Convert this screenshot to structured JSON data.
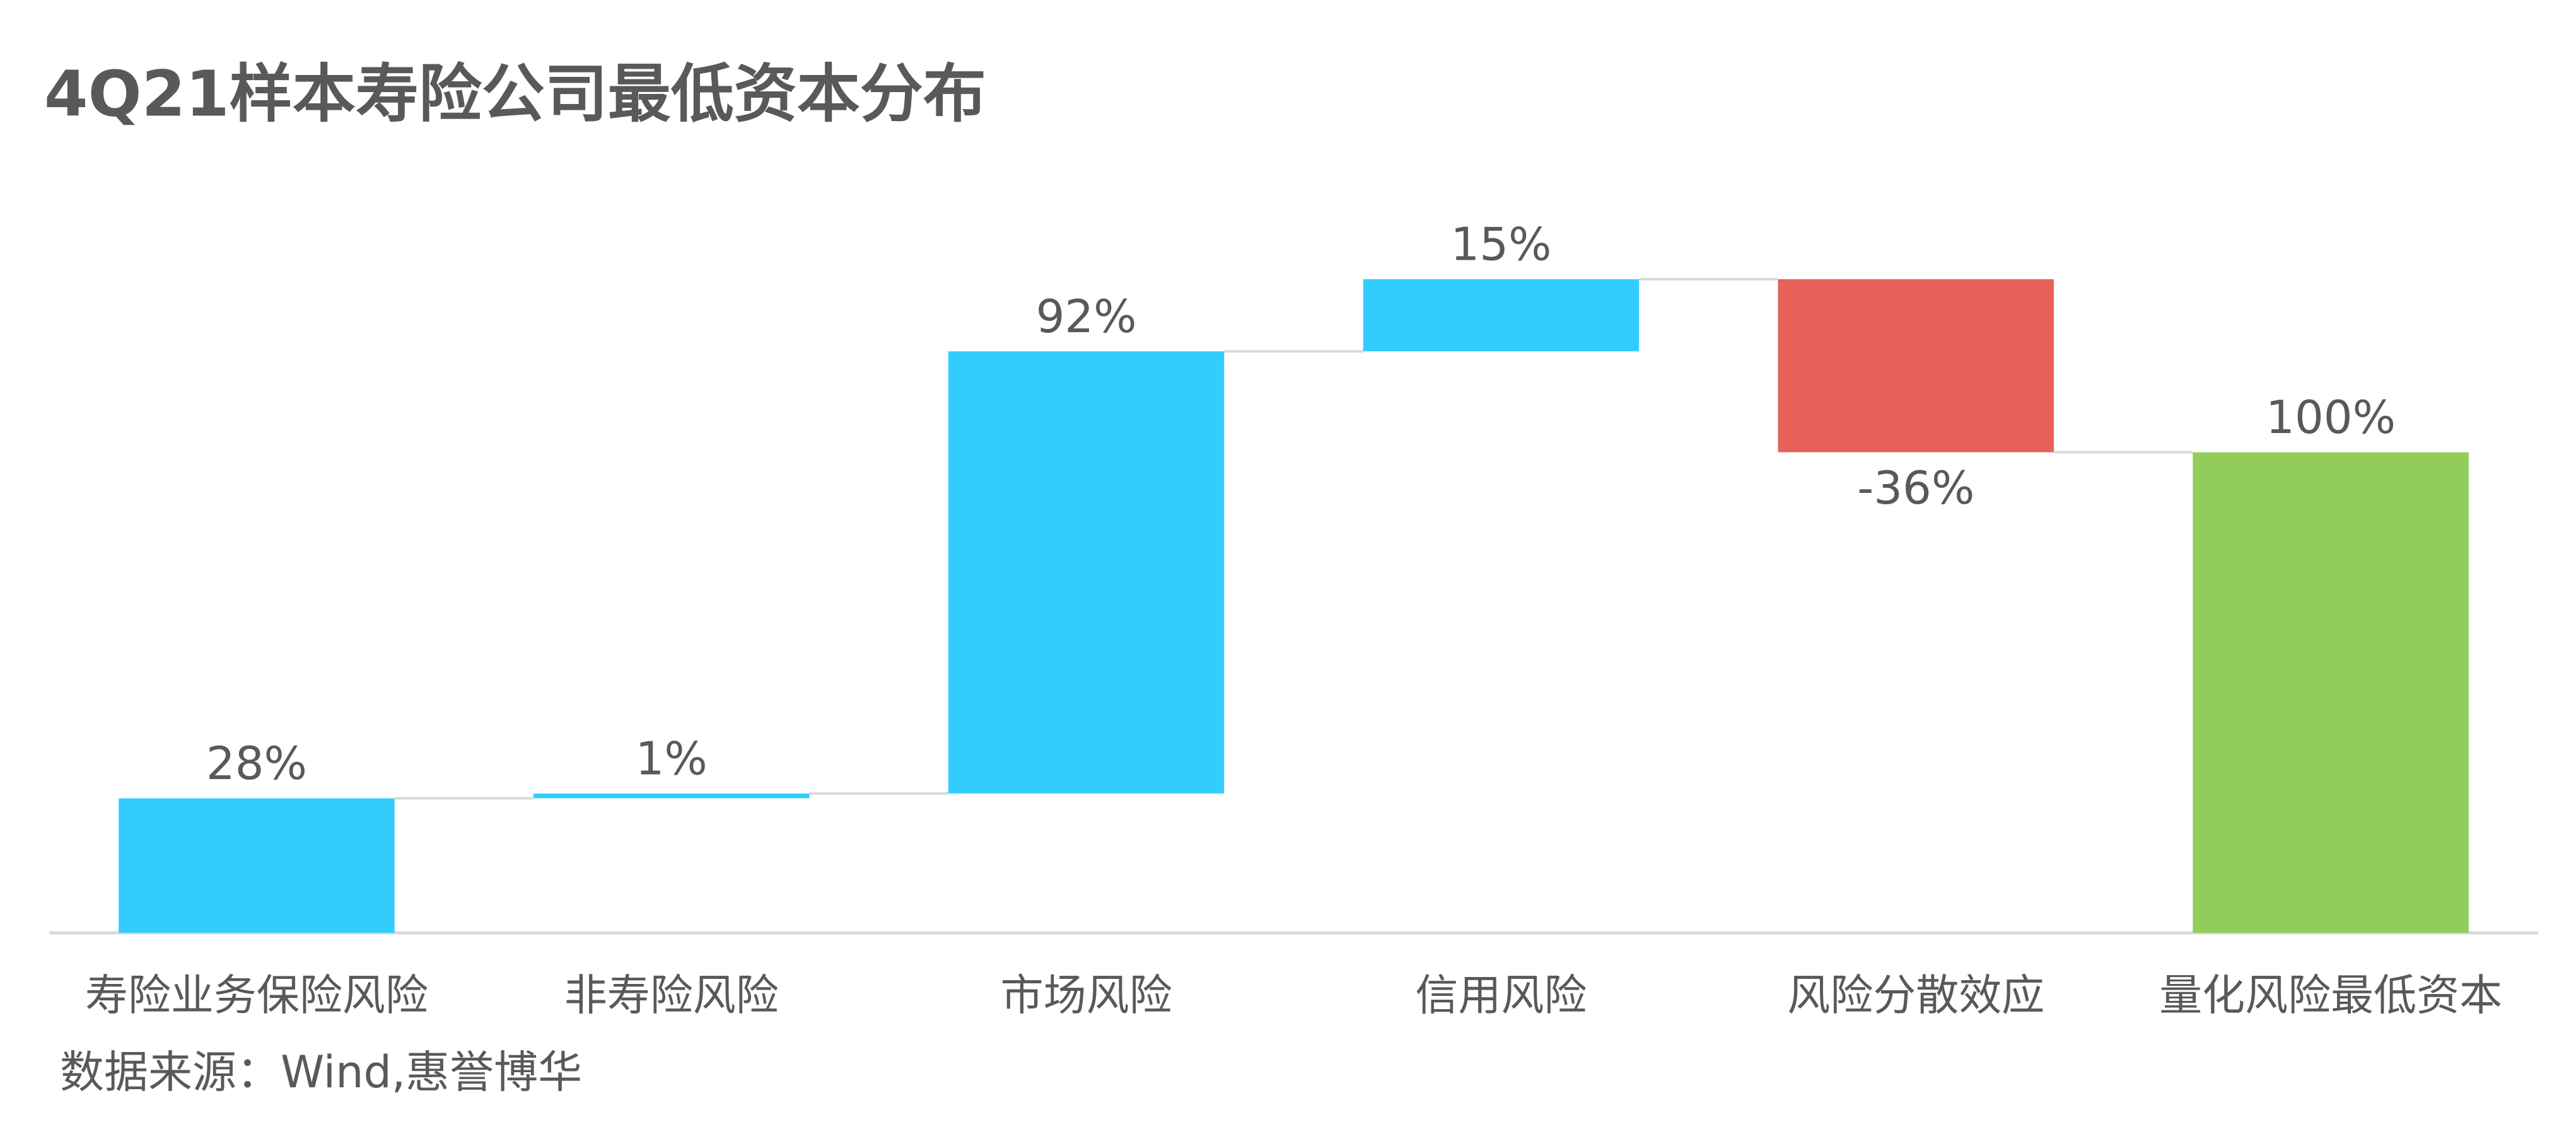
{
  "chart_data": {
    "type": "waterfall",
    "title": "4Q21样本寿险公司最低资本分布",
    "categories": [
      "寿险业务保险风险",
      "非寿险风险",
      "市场风险",
      "信用风险",
      "风险分散效应",
      "量化风险最低资本"
    ],
    "values": [
      28,
      1,
      92,
      15,
      -36,
      100
    ],
    "value_labels": [
      "28%",
      "1%",
      "92%",
      "15%",
      "-36%",
      "100%"
    ],
    "totals": [
      false,
      false,
      false,
      false,
      false,
      true
    ],
    "increase_color": "#33ccff",
    "decrease_color": "#e8605a",
    "total_color": "#92cc5a",
    "source": "数据来源：Wind,惠誉博华"
  }
}
